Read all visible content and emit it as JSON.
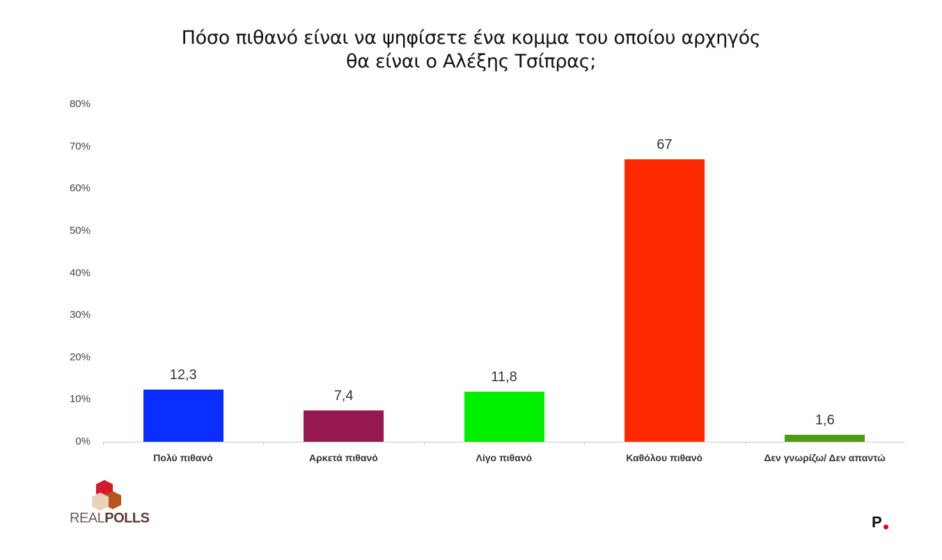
{
  "title_line1": "Πόσο πιθανό είναι να ψηφίσετε ένα κομμα του οποίου αρχηγός",
  "title_line2": "θα είναι ο Αλέξης Τσίπρας;",
  "y_ticks": [
    "80%",
    "70%",
    "60%",
    "50%",
    "40%",
    "30%",
    "20%",
    "10%",
    "0%"
  ],
  "bars": [
    {
      "label": "Πολύ πιθανό",
      "value_label": "12,3",
      "color": "#0a2eff"
    },
    {
      "label": "Αρκετά πιθανό",
      "value_label": "7,4",
      "color": "#951850"
    },
    {
      "label": "Λίγο πιθανό",
      "value_label": "11,8",
      "color": "#00f000"
    },
    {
      "label": "Καθόλου πιθανό",
      "value_label": "67",
      "color": "#ff2a00"
    },
    {
      "label": "Δεν γνωρίζω/ Δεν απαντώ",
      "value_label": "1,6",
      "color": "#4f9a10"
    }
  ],
  "logos": {
    "left_brand_part1": "REAL",
    "left_brand_part2": "POLLS",
    "right_brand": "P"
  },
  "chart_data": {
    "type": "bar",
    "title": "Πόσο πιθανό είναι να ψηφίσετε ένα κομμα του οποίου αρχηγός θα είναι ο Αλέξης Τσίπρας;",
    "categories": [
      "Πολύ πιθανό",
      "Αρκετά πιθανό",
      "Λίγο πιθανό",
      "Καθόλου πιθανό",
      "Δεν γνωρίζω/ Δεν απαντώ"
    ],
    "values": [
      12.3,
      7.4,
      11.8,
      67,
      1.6
    ],
    "colors": [
      "#0a2eff",
      "#951850",
      "#00f000",
      "#ff2a00",
      "#4f9a10"
    ],
    "xlabel": "",
    "ylabel": "",
    "ylim": [
      0,
      80
    ],
    "yticks": [
      "0%",
      "10%",
      "20%",
      "30%",
      "40%",
      "50%",
      "60%",
      "70%",
      "80%"
    ],
    "grid": false,
    "legend": "none",
    "data_labels": [
      "12,3",
      "7,4",
      "11,8",
      "67",
      "1,6"
    ]
  }
}
